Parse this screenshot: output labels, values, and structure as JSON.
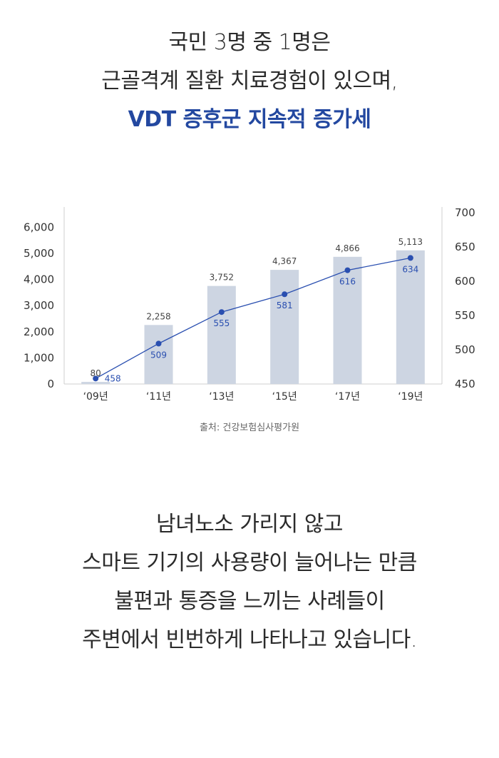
{
  "header": {
    "lines": [
      "국민 3명 중 1명은",
      "근골격계 질환 치료경험이 있으며,"
    ],
    "accent": "VDT 증후군 지속적 증가세"
  },
  "chart_data": {
    "type": "bar",
    "categories": [
      "‘09년",
      "‘11년",
      "‘13년",
      "‘15년",
      "‘17년",
      "‘19년"
    ],
    "series": [
      {
        "type": "bar",
        "axis": "left",
        "values": [
          80,
          2258,
          3752,
          4367,
          4866,
          5113
        ],
        "labels": [
          "80",
          "2,258",
          "3,752",
          "4,367",
          "4,866",
          "5,113"
        ],
        "color": "#cdd5e2"
      },
      {
        "type": "line",
        "axis": "right",
        "values": [
          458,
          509,
          555,
          581,
          616,
          634
        ],
        "labels": [
          "458",
          "509",
          "555",
          "581",
          "616",
          "634"
        ],
        "color": "#2a4fb0"
      }
    ],
    "y_left": {
      "lim": [
        0,
        6500
      ],
      "ticks": [
        "0",
        "1,000",
        "2,000",
        "3,000",
        "4,000",
        "5,000",
        "6,000"
      ],
      "tick_values": [
        0,
        1000,
        2000,
        3000,
        4000,
        5000,
        6000
      ]
    },
    "y_right": {
      "lim": [
        450,
        700
      ],
      "ticks": [
        "450",
        "500",
        "550",
        "600",
        "650",
        "700"
      ],
      "tick_values": [
        450,
        500,
        550,
        600,
        650,
        700
      ]
    },
    "grid": false,
    "title": "",
    "xlabel": "",
    "ylabel": ""
  },
  "source": "출처: 건강보험심사평가원",
  "body": {
    "lines": [
      "남녀노소 가리지 않고",
      "스마트 기기의 사용량이 늘어나는 만큼",
      "불편과 통증을 느끼는 사례들이",
      "주변에서 빈번하게 나타나고 있습니다."
    ]
  },
  "colors": {
    "accent": "#2348a0",
    "bar": "#cdd5e2",
    "line": "#2a4fb0"
  }
}
